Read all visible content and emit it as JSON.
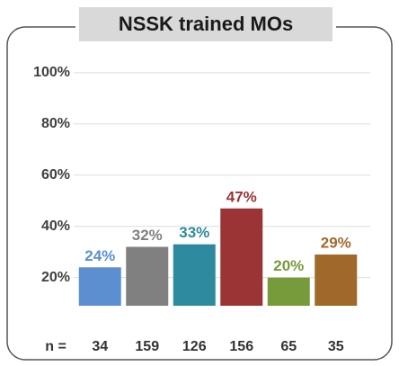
{
  "chart_data": {
    "type": "bar",
    "title": "NSSK trained MOs",
    "n_label": "n =",
    "categories": [
      "34",
      "159",
      "126",
      "156",
      "65",
      "35"
    ],
    "values": [
      24,
      32,
      33,
      47,
      20,
      29
    ],
    "value_labels": [
      "24%",
      "32%",
      "33%",
      "47%",
      "20%",
      "29%"
    ],
    "colors": [
      "#5b8fcf",
      "#808080",
      "#2e8a9e",
      "#9b3535",
      "#779a3a",
      "#a0692a"
    ],
    "ylim": [
      9,
      101
    ],
    "yticks": [
      {
        "value": 20,
        "label": "20%"
      },
      {
        "value": 40,
        "label": "40%"
      },
      {
        "value": 60,
        "label": "60%"
      },
      {
        "value": 80,
        "label": "80%"
      },
      {
        "value": 100,
        "label": "100%"
      }
    ],
    "grid": true
  }
}
